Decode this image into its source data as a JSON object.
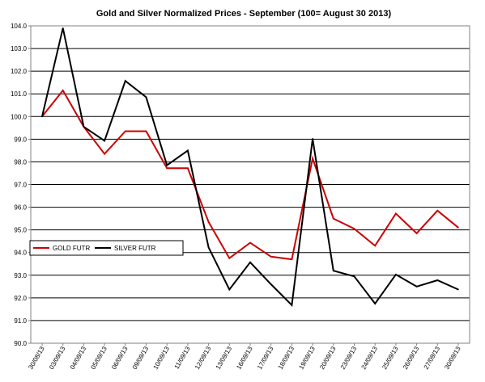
{
  "chart_data": {
    "type": "line",
    "title": "Gold and Silver Normalized Prices - September (100= August 30 2013)",
    "xlabel": "",
    "ylabel": "",
    "ylim": [
      90.0,
      104.0
    ],
    "y_ticks": [
      "90.0",
      "91.0",
      "92.0",
      "93.0",
      "94.0",
      "95.0",
      "96.0",
      "97.0",
      "98.0",
      "99.0",
      "100.0",
      "101.0",
      "102.0",
      "103.0",
      "104.0"
    ],
    "categories": [
      "30/08/13",
      "03/09/13",
      "04/09/13",
      "05/09/13",
      "06/09/13",
      "09/09/13",
      "10/09/13",
      "11/09/13",
      "12/09/13",
      "13/09/13",
      "16/09/13",
      "17/09/13",
      "18/09/13",
      "19/09/13",
      "20/09/13",
      "23/09/13",
      "24/09/13",
      "25/09/13",
      "26/09/13",
      "27/09/13",
      "30/09/13"
    ],
    "grid": true,
    "legend_position": "left",
    "series": [
      {
        "name": "GOLD  FUTR",
        "color": "#cc0000",
        "values": [
          100.0,
          101.15,
          99.55,
          98.35,
          99.35,
          99.35,
          97.72,
          97.72,
          95.35,
          93.75,
          94.43,
          93.82,
          93.7,
          98.15,
          95.5,
          95.05,
          94.3,
          95.72,
          94.85,
          95.85,
          95.1
        ]
      },
      {
        "name": "SILVER  FUTR",
        "color": "#000000",
        "values": [
          100.0,
          103.9,
          99.55,
          98.93,
          101.57,
          100.85,
          97.85,
          98.5,
          94.23,
          92.37,
          93.57,
          92.6,
          91.68,
          99.02,
          93.2,
          92.95,
          91.75,
          93.03,
          92.5,
          92.78,
          92.37
        ]
      }
    ]
  }
}
